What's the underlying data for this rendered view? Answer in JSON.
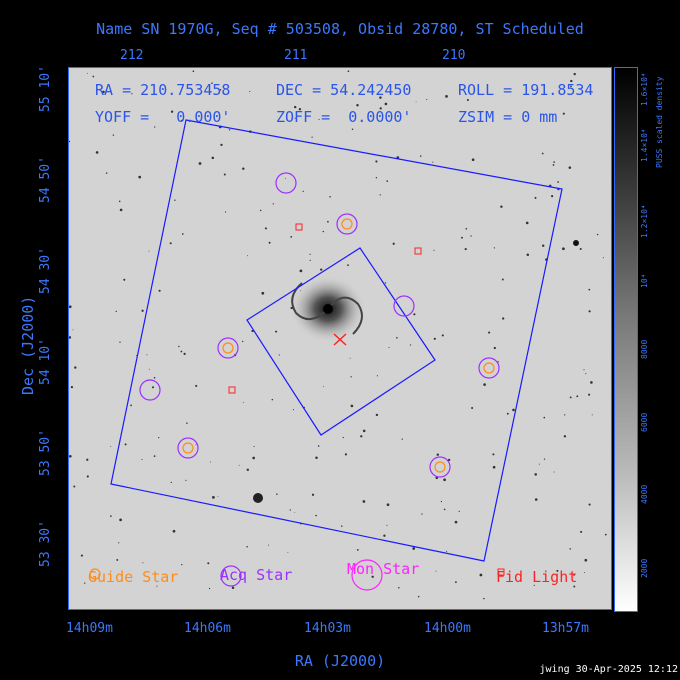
{
  "title": "Name SN 1970G, Seq # 503508, Obsid 28780, ST Scheduled",
  "info": {
    "ra": "RA = 210.753458",
    "dec": "DEC = 54.242450",
    "roll": "ROLL = 191.8534",
    "yoff": "YOFF =   0.000'",
    "zoff": "ZOFF =  0.0000'",
    "zsim": "ZSIM = 0 mm"
  },
  "top_ticks": [
    "212",
    "211",
    "210"
  ],
  "bottom_ticks": [
    "14h09m",
    "14h06m",
    "14h03m",
    "14h00m",
    "13h57m"
  ],
  "left_ticks": [
    "55 10'",
    "54 50'",
    "54 30'",
    "54 10'",
    "53 50'",
    "53 30'"
  ],
  "xlabel": "RA (J2000)",
  "ylabel": "Dec (J2000)",
  "colorbar": {
    "ticks": [
      "2000",
      "4000",
      "6000",
      "8000",
      "10⁴",
      "1.2×10⁴",
      "1.4×10⁴",
      "1.6×10⁴"
    ],
    "label": "PUSS scaled density"
  },
  "legend": [
    {
      "label": "Guide Star",
      "color": "#ff8c1a"
    },
    {
      "label": "Acq Star",
      "color": "#9b30ff"
    },
    {
      "label": "Mon Star",
      "color": "#ff22ff"
    },
    {
      "label": "Fid Light",
      "color": "#ff2222"
    }
  ],
  "footer": "jwing 30-Apr-2025 12:12",
  "colors": {
    "frame": "#2f6bff",
    "field": "#1a1aff",
    "guide": "#ff8c1a",
    "acq": "#9b30ff",
    "mon": "#ff22ff",
    "fid": "#ff2222"
  }
}
